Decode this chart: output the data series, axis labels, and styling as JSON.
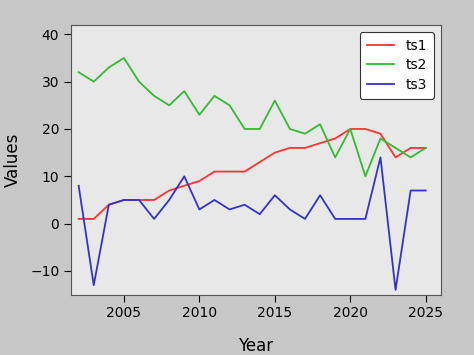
{
  "years": [
    2002,
    2003,
    2004,
    2005,
    2006,
    2007,
    2008,
    2009,
    2010,
    2011,
    2012,
    2013,
    2014,
    2015,
    2016,
    2017,
    2018,
    2019,
    2020,
    2021,
    2022,
    2023,
    2024,
    2025
  ],
  "ts1": [
    1,
    1,
    4,
    5,
    5,
    5,
    7,
    8,
    9,
    11,
    11,
    11,
    13,
    15,
    16,
    16,
    17,
    18,
    20,
    20,
    19,
    14,
    16,
    16
  ],
  "ts2": [
    32,
    30,
    33,
    35,
    30,
    27,
    25,
    28,
    23,
    27,
    25,
    20,
    20,
    26,
    20,
    19,
    21,
    14,
    20,
    10,
    18,
    16,
    14,
    16
  ],
  "ts3": [
    8,
    -13,
    4,
    5,
    5,
    1,
    5,
    10,
    3,
    5,
    3,
    4,
    2,
    6,
    3,
    1,
    6,
    1,
    1,
    1,
    14,
    -14,
    7,
    7
  ],
  "ts1_color": "#FF3333",
  "ts2_color": "#33BB33",
  "ts3_color": "#3333CC",
  "xlabel": "Year",
  "ylabel": "Values",
  "ylim": [
    -15,
    42
  ],
  "yticks": [
    -10,
    0,
    10,
    20,
    30,
    40
  ],
  "xlim": [
    2001.5,
    2026
  ],
  "xticks": [
    2005,
    2010,
    2015,
    2020,
    2025
  ],
  "fig_bg_color": "#C8C8C8",
  "panel_color": "#E8E8E8",
  "legend_labels": [
    "ts1",
    "ts2",
    "ts3"
  ],
  "linewidth": 1.3,
  "tick_labelsize": 10,
  "axis_labelsize": 12
}
